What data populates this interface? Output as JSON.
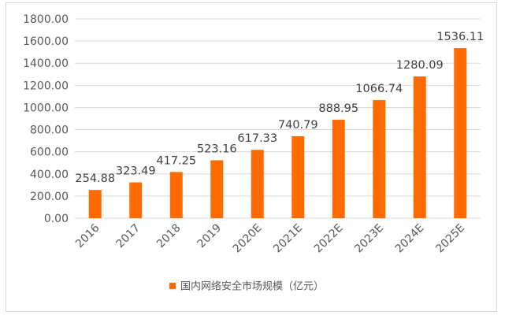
{
  "chart_data": {
    "type": "bar",
    "categories": [
      "2016",
      "2017",
      "2018",
      "2019",
      "2020E",
      "2021E",
      "2022E",
      "2023E",
      "2024E",
      "2025E"
    ],
    "series": [
      {
        "name": "国内网络安全市场规模（亿元）",
        "values": [
          254.88,
          323.49,
          417.25,
          523.16,
          617.33,
          740.79,
          888.95,
          1066.74,
          1280.09,
          1536.11
        ],
        "labels": [
          "254.88",
          "323.49",
          "417.25",
          "523.16",
          "617.33",
          "740.79",
          "888.95",
          "1066.74",
          "1280.09",
          "1536.11"
        ]
      }
    ],
    "y_ticks": [
      "0.00",
      "200.00",
      "400.00",
      "600.00",
      "800.00",
      "1000.00",
      "1200.00",
      "1400.00",
      "1600.00",
      "1800.00"
    ],
    "ylim": [
      0,
      1800
    ],
    "grid": true,
    "legend_position": "bottom",
    "colors": {
      "bar": "#FF6B00",
      "grid": "#d9d9d9",
      "axis_text": "#595959",
      "label_text": "#404040"
    }
  }
}
